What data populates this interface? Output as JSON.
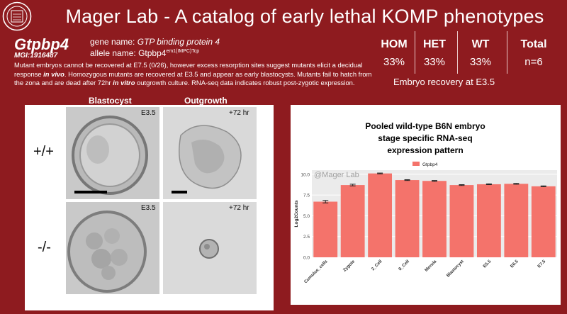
{
  "header": {
    "title": "Mager Lab - A catalog of early lethal KOMP phenotypes"
  },
  "gene": {
    "symbol": "Gtpbp4",
    "mgi": "MGI:1916487",
    "gene_name_label": "gene name:",
    "gene_name_value": "GTP binding protein 4",
    "allele_label": "allele name:",
    "allele_base": "Gtpbp4",
    "allele_sup": "em1(IMPC)Tcp"
  },
  "description": {
    "p1": "Mutant embryos cannot be recovered at E7.5 (0/26), however excess resorption sites suggest mutants elicit a decidual response ",
    "p1_em": "in vivo",
    "p2": ". Homozygous mutants are recovered at E3.5 and appear as early blastocysts. Mutants fail to hatch from the zona and are dead after 72hr ",
    "p2_em": "in vitro",
    "p3": " outgrowth culture. RNA-seq data indicates robust post-zygotic expression."
  },
  "stats": {
    "headers": [
      "HOM",
      "HET",
      "WT",
      "Total"
    ],
    "values": [
      "33%",
      "33%",
      "33%",
      "n=6"
    ],
    "caption": "Embryo recovery at E3.5"
  },
  "images": {
    "col_headers": [
      "Blastocyst",
      "Outgrowth"
    ],
    "genotypes": [
      "+/+",
      "-/-"
    ],
    "stage_labels": [
      "E3.5",
      "+72 hr",
      "E3.5",
      "+72 hr"
    ]
  },
  "chart_data": {
    "type": "bar",
    "title_lines": [
      "Pooled wild-type B6N embryo",
      "stage specific RNA-seq",
      "expression pattern"
    ],
    "watermark": "@Mager Lab",
    "legend": "Gtpbp4",
    "ylabel": "Log2Counts",
    "ylim": [
      0,
      10.5
    ],
    "yticks": [
      "0.0",
      "2.5",
      "5.0",
      "7.5",
      "10.0"
    ],
    "categories": [
      "Cumulus_cells",
      "Zygote",
      "2_Cell",
      "8_Cell",
      "Morula",
      "Blastocyst",
      "E5.5",
      "E6.5",
      "E7.5"
    ],
    "values": [
      6.7,
      8.7,
      10.1,
      9.3,
      9.2,
      8.7,
      8.8,
      8.85,
      8.55
    ],
    "errors": [
      0.15,
      0.1,
      0.05,
      0.05,
      0.05,
      0.05,
      0.05,
      0.05,
      0.05
    ],
    "color": "#f4736b"
  }
}
